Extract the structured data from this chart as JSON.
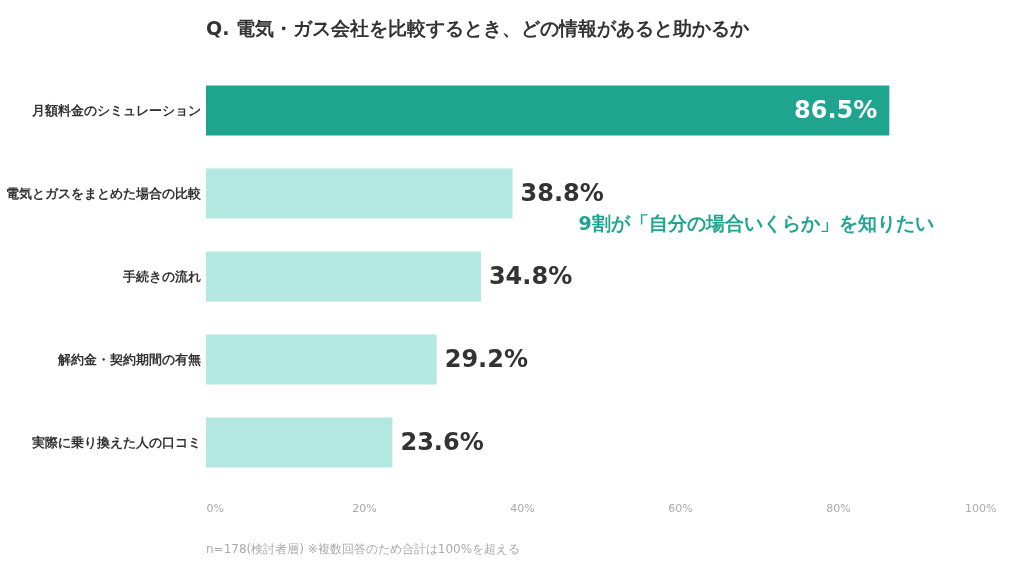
{
  "chart_data": {
    "type": "bar",
    "orientation": "horizontal",
    "title": "Q. 電気・ガス会社を比較するとき、どの情報があると助かるか",
    "categories": [
      "月額料金のシミュレーション",
      "電気とガスをまとめた場合の比較",
      "手続きの流れ",
      "解約金・契約期間の有無",
      "実際に乗り換えた人の口コミ"
    ],
    "values": [
      86.5,
      38.8,
      34.8,
      29.2,
      23.6
    ],
    "value_labels": [
      "86.5%",
      "38.8%",
      "34.8%",
      "29.2%",
      "23.6%"
    ],
    "colors": [
      "#1fa58f",
      "#b3e8e0",
      "#b3e8e0",
      "#b3e8e0",
      "#b3e8e0"
    ],
    "xlim": [
      0,
      100
    ],
    "xticks": [
      {
        "value": 0,
        "label": "0%"
      },
      {
        "value": 20,
        "label": "20%"
      },
      {
        "value": 40,
        "label": "40%"
      },
      {
        "value": 60,
        "label": "60%"
      },
      {
        "value": 80,
        "label": "80%"
      },
      {
        "value": 100,
        "label": "100%"
      }
    ],
    "grid": false,
    "annotations": [
      "9割が「自分の場合いくらか」を知りたい",
      "n=178(検討者層) ※複数回答のため合計は100%を超える"
    ]
  }
}
